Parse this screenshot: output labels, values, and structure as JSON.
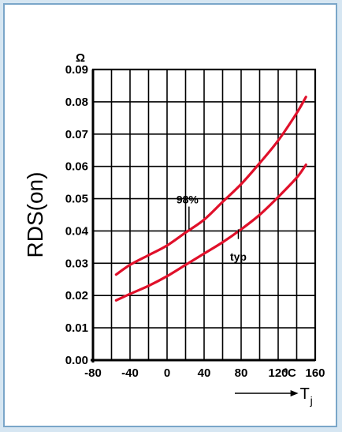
{
  "chart_data": {
    "type": "line",
    "unit_y": "Ω",
    "ylabel": "RDS(on)",
    "xlabel_main": "T",
    "xlabel_sub": "j",
    "x_unit": "ºC",
    "xlim": [
      -80,
      160
    ],
    "ylim": [
      0.0,
      0.09
    ],
    "x_ticks": [
      "-80",
      "-40",
      "0",
      "40",
      "80",
      "120",
      "160"
    ],
    "y_ticks": [
      "0.00",
      "0.01",
      "0.02",
      "0.03",
      "0.04",
      "0.05",
      "0.06",
      "0.07",
      "0.08",
      "0.09"
    ],
    "grid": true,
    "series": [
      {
        "name": "98%",
        "color": "#e0102a",
        "x": [
          -55,
          -40,
          -20,
          0,
          20,
          40,
          60,
          80,
          100,
          120,
          140,
          150
        ],
        "y": [
          0.0265,
          0.0295,
          0.0325,
          0.0355,
          0.0395,
          0.0435,
          0.049,
          0.0545,
          0.061,
          0.068,
          0.0765,
          0.0815
        ]
      },
      {
        "name": "typ",
        "color": "#e0102a",
        "x": [
          -55,
          -40,
          -20,
          0,
          20,
          40,
          60,
          80,
          100,
          120,
          140,
          150
        ],
        "y": [
          0.0185,
          0.0205,
          0.023,
          0.026,
          0.0295,
          0.033,
          0.0365,
          0.0405,
          0.045,
          0.0505,
          0.0565,
          0.0605
        ]
      }
    ],
    "annotations": [
      "98%",
      "typ"
    ]
  }
}
